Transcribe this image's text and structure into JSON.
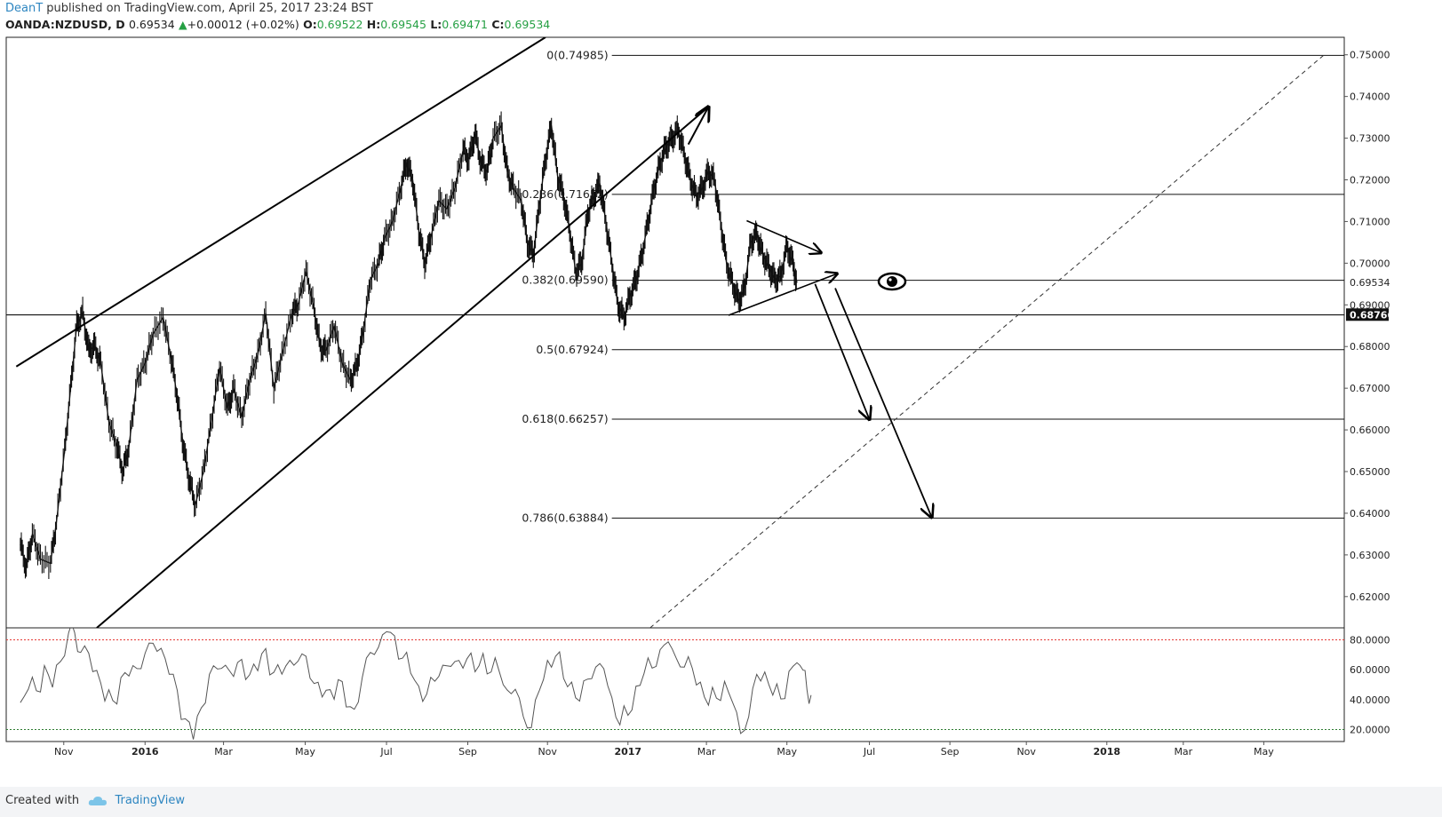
{
  "header": {
    "author": "DeanT",
    "published_text": "published on TradingView.com, April 25, 2017 23:24 BST"
  },
  "symbol_bar": {
    "symbol": "OANDA:NZDUSD, D",
    "last": "0.69534",
    "change": "+0.00012 (+0.02%)",
    "open_label": "O:",
    "open": "0.69522",
    "high_label": "H:",
    "high": "0.69545",
    "low_label": "L:",
    "low": "0.69471",
    "close_label": "C:",
    "close": "0.69534",
    "up_color": "#26a044"
  },
  "footer": {
    "created_with": "Created with",
    "brand": "TradingView"
  },
  "chart_data": {
    "type": "line",
    "price_axis": {
      "range": [
        0.6125,
        0.7542
      ],
      "ticks": [
        "0.75000",
        "0.74000",
        "0.73000",
        "0.72000",
        "0.71000",
        "0.70000",
        "0.69000",
        "0.68000",
        "0.67000",
        "0.66000",
        "0.65000",
        "0.64000",
        "0.63000",
        "0.62000"
      ],
      "current_price_label": "0.69534",
      "highlighted_label": "0.68766"
    },
    "time_axis": {
      "labels": [
        {
          "text": "Nov",
          "t": 1.08,
          "bold": false
        },
        {
          "text": "2016",
          "t": 3.1,
          "bold": true
        },
        {
          "text": "Mar",
          "t": 5.05,
          "bold": false
        },
        {
          "text": "May",
          "t": 7.08,
          "bold": false
        },
        {
          "text": "Jul",
          "t": 9.1,
          "bold": false
        },
        {
          "text": "Sep",
          "t": 11.12,
          "bold": false
        },
        {
          "text": "Nov",
          "t": 13.1,
          "bold": false
        },
        {
          "text": "2017",
          "t": 15.1,
          "bold": true
        },
        {
          "text": "Mar",
          "t": 17.05,
          "bold": false
        },
        {
          "text": "May",
          "t": 19.05,
          "bold": false
        },
        {
          "text": "Jul",
          "t": 21.1,
          "bold": false
        },
        {
          "text": "Sep",
          "t": 23.1,
          "bold": false
        },
        {
          "text": "Nov",
          "t": 25.0,
          "bold": false
        },
        {
          "text": "2018",
          "t": 27.0,
          "bold": true
        },
        {
          "text": "Mar",
          "t": 28.9,
          "bold": false
        },
        {
          "text": "May",
          "t": 30.9,
          "bold": false
        }
      ]
    },
    "price_path": [
      [
        0.0,
        0.6325
      ],
      [
        0.15,
        0.627
      ],
      [
        0.3,
        0.635
      ],
      [
        0.5,
        0.629
      ],
      [
        0.75,
        0.628
      ],
      [
        0.9,
        0.638
      ],
      [
        1.1,
        0.655
      ],
      [
        1.25,
        0.67
      ],
      [
        1.4,
        0.685
      ],
      [
        1.55,
        0.688
      ],
      [
        1.7,
        0.679
      ],
      [
        1.85,
        0.68
      ],
      [
        2.0,
        0.676
      ],
      [
        2.2,
        0.662
      ],
      [
        2.4,
        0.656
      ],
      [
        2.55,
        0.65
      ],
      [
        2.7,
        0.656
      ],
      [
        2.9,
        0.672
      ],
      [
        3.1,
        0.676
      ],
      [
        3.3,
        0.683
      ],
      [
        3.55,
        0.687
      ],
      [
        3.75,
        0.677
      ],
      [
        3.9,
        0.668
      ],
      [
        4.05,
        0.656
      ],
      [
        4.2,
        0.648
      ],
      [
        4.35,
        0.642
      ],
      [
        4.55,
        0.65
      ],
      [
        4.75,
        0.662
      ],
      [
        4.95,
        0.675
      ],
      [
        5.15,
        0.665
      ],
      [
        5.3,
        0.67
      ],
      [
        5.5,
        0.663
      ],
      [
        5.7,
        0.672
      ],
      [
        5.9,
        0.678
      ],
      [
        6.1,
        0.688
      ],
      [
        6.3,
        0.67
      ],
      [
        6.5,
        0.678
      ],
      [
        6.75,
        0.688
      ],
      [
        6.9,
        0.69
      ],
      [
        7.1,
        0.698
      ],
      [
        7.3,
        0.689
      ],
      [
        7.45,
        0.68
      ],
      [
        7.6,
        0.679
      ],
      [
        7.8,
        0.685
      ],
      [
        8.0,
        0.676
      ],
      [
        8.2,
        0.672
      ],
      [
        8.35,
        0.675
      ],
      [
        8.5,
        0.682
      ],
      [
        8.7,
        0.696
      ],
      [
        8.9,
        0.7
      ],
      [
        9.05,
        0.706
      ],
      [
        9.25,
        0.71
      ],
      [
        9.45,
        0.718
      ],
      [
        9.6,
        0.724
      ],
      [
        9.75,
        0.72
      ],
      [
        9.9,
        0.708
      ],
      [
        10.05,
        0.7
      ],
      [
        10.2,
        0.706
      ],
      [
        10.4,
        0.715
      ],
      [
        10.6,
        0.713
      ],
      [
        10.8,
        0.718
      ],
      [
        11.0,
        0.727
      ],
      [
        11.15,
        0.725
      ],
      [
        11.3,
        0.731
      ],
      [
        11.45,
        0.724
      ],
      [
        11.6,
        0.722
      ],
      [
        11.75,
        0.73
      ],
      [
        11.95,
        0.733
      ],
      [
        12.1,
        0.722
      ],
      [
        12.25,
        0.718
      ],
      [
        12.45,
        0.715
      ],
      [
        12.6,
        0.705
      ],
      [
        12.75,
        0.702
      ],
      [
        12.9,
        0.714
      ],
      [
        13.05,
        0.725
      ],
      [
        13.2,
        0.733
      ],
      [
        13.35,
        0.721
      ],
      [
        13.5,
        0.716
      ],
      [
        13.65,
        0.708
      ],
      [
        13.8,
        0.698
      ],
      [
        13.95,
        0.7
      ],
      [
        14.1,
        0.712
      ],
      [
        14.25,
        0.716
      ],
      [
        14.4,
        0.719
      ],
      [
        14.55,
        0.71
      ],
      [
        14.7,
        0.7
      ],
      [
        14.85,
        0.69
      ],
      [
        15.0,
        0.687
      ],
      [
        15.15,
        0.692
      ],
      [
        15.3,
        0.696
      ],
      [
        15.45,
        0.702
      ],
      [
        15.6,
        0.71
      ],
      [
        15.75,
        0.718
      ],
      [
        15.9,
        0.724
      ],
      [
        16.05,
        0.728
      ],
      [
        16.2,
        0.73
      ],
      [
        16.35,
        0.732
      ],
      [
        16.5,
        0.726
      ],
      [
        16.65,
        0.72
      ],
      [
        16.8,
        0.716
      ],
      [
        16.95,
        0.718
      ],
      [
        17.1,
        0.722
      ],
      [
        17.25,
        0.72
      ],
      [
        17.4,
        0.71
      ],
      [
        17.55,
        0.7
      ],
      [
        17.7,
        0.695
      ],
      [
        17.85,
        0.691
      ],
      [
        18.0,
        0.694
      ],
      [
        18.15,
        0.705
      ],
      [
        18.3,
        0.707
      ],
      [
        18.45,
        0.702
      ],
      [
        18.6,
        0.699
      ],
      [
        18.75,
        0.696
      ],
      [
        18.9,
        0.697
      ],
      [
        19.05,
        0.704
      ],
      [
        19.2,
        0.7
      ],
      [
        19.3,
        0.6953
      ]
    ],
    "channel_lines": [
      {
        "from": [
          -0.1,
          0.6752
        ],
        "to": [
          13.05,
          0.7542
        ]
      },
      {
        "from": [
          1.9,
          0.6125
        ],
        "to": [
          17.1,
          0.7375
        ]
      }
    ],
    "triangle_lines": [
      {
        "from": [
          18.05,
          0.7102
        ],
        "to": [
          19.9,
          0.7025
        ],
        "arrow": true
      },
      {
        "from": [
          17.6,
          0.6875
        ],
        "to": [
          20.3,
          0.6975
        ],
        "arrow": true
      }
    ],
    "projection_arrows": [
      {
        "from": [
          19.75,
          0.695
        ],
        "to": [
          21.1,
          0.6625
        ]
      },
      {
        "from": [
          20.25,
          0.694
        ],
        "to": [
          22.65,
          0.639
        ]
      }
    ],
    "dashed_trend": {
      "from": [
        15.65,
        0.6125
      ],
      "to": [
        32.4,
        0.75
      ]
    },
    "support_line_price": 0.6876,
    "fib_levels": [
      {
        "label": "0(0.74985)",
        "price": 0.74985,
        "x_start": 14.7
      },
      {
        "label": "0.236(0.71652)",
        "price": 0.71652,
        "x_start": 14.7
      },
      {
        "label": "0.382(0.69590)",
        "price": 0.6959,
        "x_start": 14.7
      },
      {
        "label": "0.5(0.67924)",
        "price": 0.67924,
        "x_start": 14.7
      },
      {
        "label": "0.618(0.66257)",
        "price": 0.66257,
        "x_start": 14.7
      },
      {
        "label": "0.786(0.63884)",
        "price": 0.63884,
        "x_start": 14.7
      }
    ],
    "oscillator": {
      "range": [
        12,
        88
      ],
      "ticks": [
        "80.0000",
        "60.0000",
        "40.0000",
        "20.0000"
      ],
      "overbought": 80,
      "oversold": 20,
      "overbought_color": "#e53935",
      "oversold_color": "#2e7d32",
      "values": [
        [
          0.0,
          38
        ],
        [
          0.2,
          52
        ],
        [
          0.4,
          45
        ],
        [
          0.6,
          58
        ],
        [
          0.8,
          50
        ],
        [
          1.0,
          70
        ],
        [
          1.2,
          82
        ],
        [
          1.35,
          86
        ],
        [
          1.5,
          72
        ],
        [
          1.7,
          66
        ],
        [
          1.9,
          60
        ],
        [
          2.1,
          44
        ],
        [
          2.3,
          38
        ],
        [
          2.5,
          50
        ],
        [
          2.7,
          58
        ],
        [
          2.9,
          65
        ],
        [
          3.1,
          68
        ],
        [
          3.3,
          74
        ],
        [
          3.5,
          78
        ],
        [
          3.7,
          60
        ],
        [
          3.9,
          42
        ],
        [
          4.1,
          25
        ],
        [
          4.3,
          18
        ],
        [
          4.5,
          36
        ],
        [
          4.7,
          52
        ],
        [
          4.9,
          60
        ],
        [
          5.1,
          68
        ],
        [
          5.3,
          55
        ],
        [
          5.5,
          62
        ],
        [
          5.7,
          58
        ],
        [
          5.9,
          64
        ],
        [
          6.1,
          72
        ],
        [
          6.3,
          54
        ],
        [
          6.5,
          60
        ],
        [
          6.7,
          70
        ],
        [
          6.9,
          62
        ],
        [
          7.1,
          66
        ],
        [
          7.3,
          55
        ],
        [
          7.5,
          44
        ],
        [
          7.7,
          42
        ],
        [
          7.9,
          52
        ],
        [
          8.1,
          40
        ],
        [
          8.3,
          34
        ],
        [
          8.5,
          50
        ],
        [
          8.7,
          72
        ],
        [
          8.9,
          80
        ],
        [
          9.1,
          84
        ],
        [
          9.3,
          78
        ],
        [
          9.5,
          70
        ],
        [
          9.7,
          62
        ],
        [
          9.9,
          46
        ],
        [
          10.1,
          40
        ],
        [
          10.3,
          56
        ],
        [
          10.5,
          66
        ],
        [
          10.7,
          58
        ],
        [
          10.9,
          64
        ],
        [
          11.1,
          72
        ],
        [
          11.3,
          60
        ],
        [
          11.5,
          66
        ],
        [
          11.7,
          58
        ],
        [
          11.9,
          64
        ],
        [
          12.1,
          46
        ],
        [
          12.3,
          42
        ],
        [
          12.5,
          30
        ],
        [
          12.7,
          26
        ],
        [
          12.9,
          44
        ],
        [
          13.1,
          62
        ],
        [
          13.3,
          72
        ],
        [
          13.5,
          58
        ],
        [
          13.7,
          48
        ],
        [
          13.9,
          36
        ],
        [
          14.1,
          58
        ],
        [
          14.3,
          64
        ],
        [
          14.5,
          56
        ],
        [
          14.7,
          40
        ],
        [
          14.9,
          28
        ],
        [
          15.1,
          30
        ],
        [
          15.3,
          44
        ],
        [
          15.5,
          58
        ],
        [
          15.7,
          66
        ],
        [
          15.9,
          72
        ],
        [
          16.1,
          74
        ],
        [
          16.3,
          70
        ],
        [
          16.5,
          66
        ],
        [
          16.7,
          58
        ],
        [
          16.9,
          48
        ],
        [
          17.1,
          40
        ],
        [
          17.3,
          44
        ],
        [
          17.5,
          48
        ],
        [
          17.7,
          36
        ],
        [
          17.9,
          22
        ],
        [
          18.1,
          30
        ],
        [
          18.3,
          52
        ],
        [
          18.5,
          58
        ],
        [
          18.7,
          48
        ],
        [
          18.9,
          40
        ],
        [
          19.1,
          54
        ],
        [
          19.3,
          66
        ],
        [
          19.45,
          60
        ],
        [
          19.55,
          50
        ],
        [
          19.65,
          38
        ]
      ]
    }
  }
}
